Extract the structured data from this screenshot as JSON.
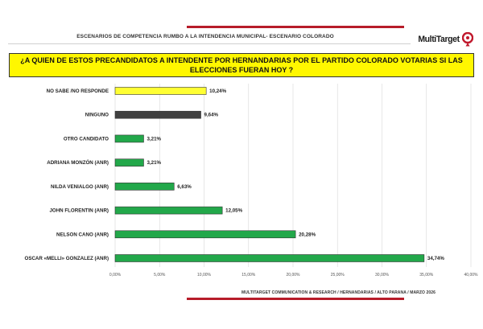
{
  "header": {
    "title": "ESCENARIOS DE COMPETENCIA RUMBO A LA INTENDENCIA MUNICIPAL- ESCENARIO COLORADO",
    "logo_text": "MultiTarget"
  },
  "question": "¿A QUIEN DE ESTOS PRECANDIDATOS A INTENDENTE POR HERNANDARIAS POR EL PARTIDO COLORADO  VOTARIAS SI LAS ELECCIONES FUERAN HOY ?",
  "footer": "MULTITARGET COMMUNICATION & RESEARCH / HERNANDARIAS  /  ALTO PARANA / MARZO 2026",
  "colors": {
    "accent_red": "#b71c2a",
    "question_bg": "#fff700",
    "bar_yellow": "#ffff33",
    "bar_dark": "#404040",
    "bar_green": "#22a84a"
  },
  "chart_data": {
    "type": "bar",
    "orientation": "horizontal",
    "title": "",
    "xlabel": "",
    "ylabel": "",
    "xlim": [
      0,
      40
    ],
    "x_ticks": [
      "0,00%",
      "5,00%",
      "10,00%",
      "15,00%",
      "20,00%",
      "25,00%",
      "30,00%",
      "35,00%",
      "40,00%"
    ],
    "grid": true,
    "legend": "none",
    "categories": [
      "NO SABE /NO RESPONDE",
      "NINGUNO",
      "OTRO CANDIDATO",
      "ADRIANA MONZÓN (ANR)",
      "NILDA VENIALGO (ANR)",
      "JOHN FLORENTIN (ANR)",
      "NELSON CANO  (ANR)",
      "OSCAR «MELLI» GONZALEZ (ANR)"
    ],
    "values": [
      10.24,
      9.64,
      3.21,
      3.21,
      6.63,
      12.05,
      20.28,
      34.74
    ],
    "value_labels": [
      "10,24%",
      "9,64%",
      "3,21%",
      "3,21%",
      "6,63%",
      "12,05%",
      "20,28%",
      "34,74%"
    ],
    "bar_colors": [
      "#ffff33",
      "#404040",
      "#22a84a",
      "#22a84a",
      "#22a84a",
      "#22a84a",
      "#22a84a",
      "#22a84a"
    ]
  }
}
